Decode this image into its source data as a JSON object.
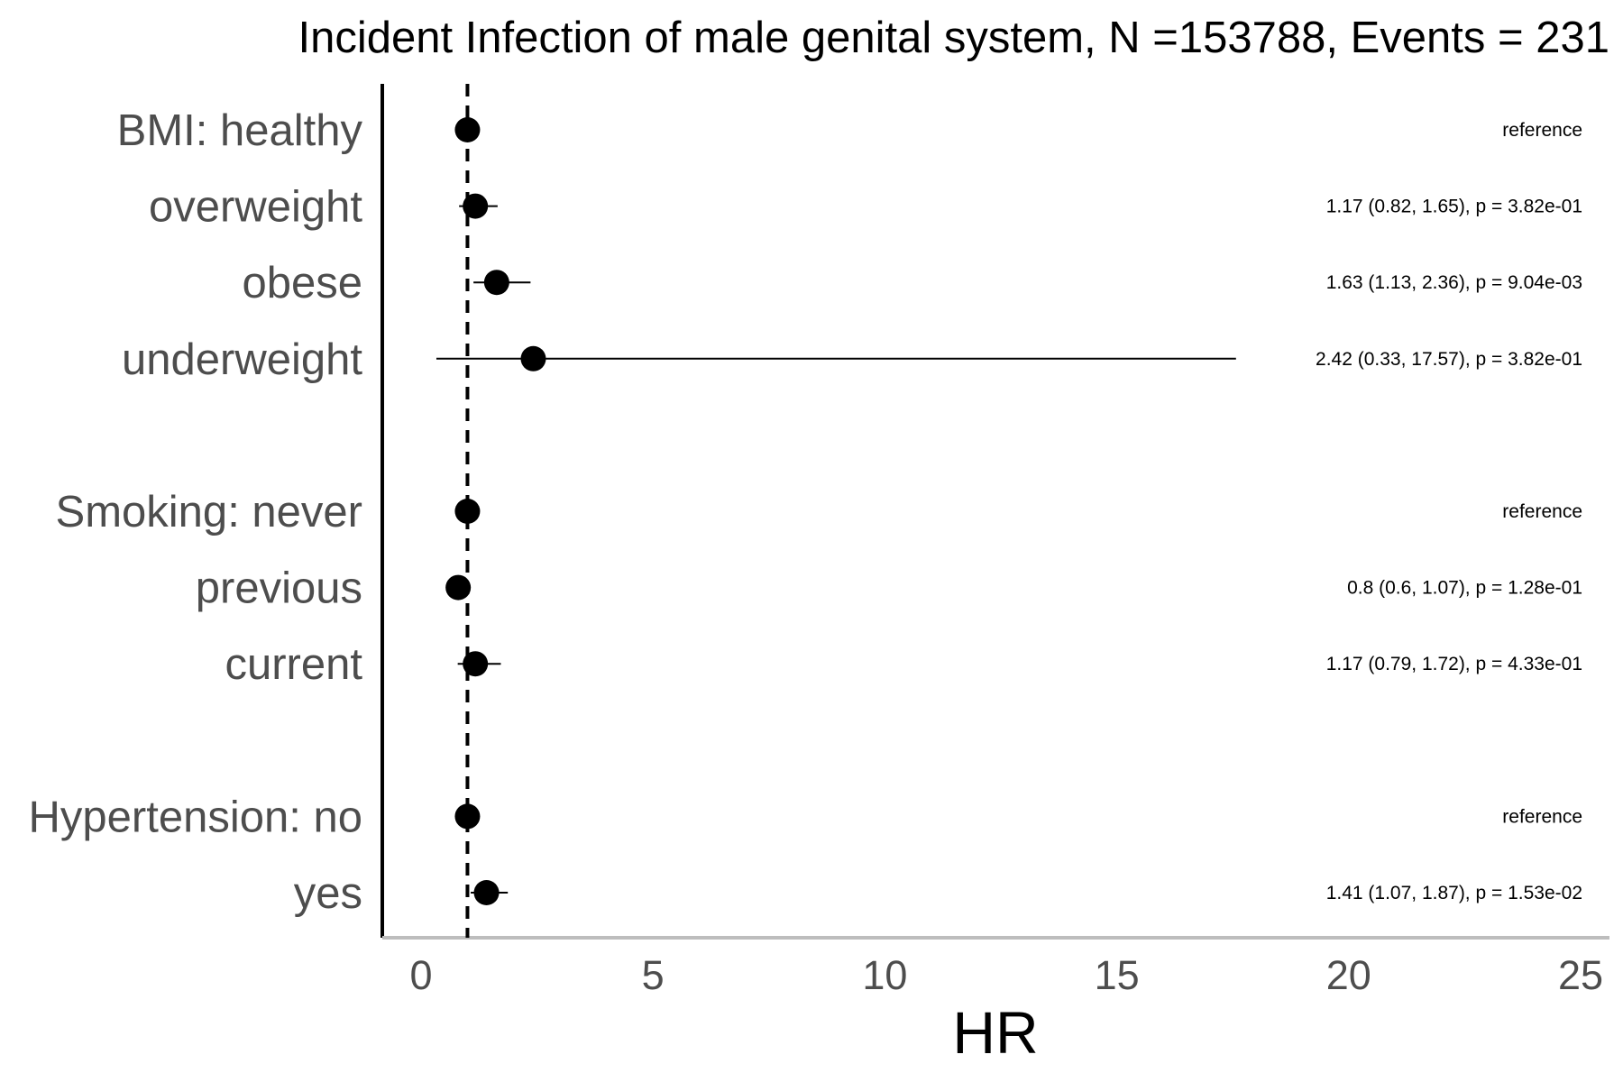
{
  "chart_data": {
    "type": "scatter",
    "subtype": "forest-plot",
    "title": "Incident Infection of male genital system, N =153788, Events = 231",
    "xlabel": "HR",
    "ylabel": "",
    "xlim": [
      -0.8,
      25.5
    ],
    "xticks": [
      0,
      5,
      10,
      15,
      20,
      25
    ],
    "reference_line": {
      "x": 1,
      "style": "dashed"
    },
    "grid": false,
    "rows": [
      {
        "label": "BMI: healthy",
        "hr": 1.0,
        "lower": null,
        "upper": null,
        "annotation": "reference",
        "group": 0
      },
      {
        "label": "overweight",
        "hr": 1.17,
        "lower": 0.82,
        "upper": 1.65,
        "annotation": "1.17 (0.82, 1.65), p = 3.82e-01",
        "group": 0
      },
      {
        "label": "obese",
        "hr": 1.63,
        "lower": 1.13,
        "upper": 2.36,
        "annotation": "1.63 (1.13, 2.36), p = 9.04e-03",
        "group": 0
      },
      {
        "label": "underweight",
        "hr": 2.42,
        "lower": 0.33,
        "upper": 17.57,
        "annotation": "2.42 (0.33, 17.57), p = 3.82e-01",
        "group": 0
      },
      {
        "label": "Smoking: never",
        "hr": 1.0,
        "lower": null,
        "upper": null,
        "annotation": "reference",
        "group": 1
      },
      {
        "label": "previous",
        "hr": 0.8,
        "lower": 0.6,
        "upper": 1.07,
        "annotation": "0.8 (0.6, 1.07), p = 1.28e-01",
        "group": 1
      },
      {
        "label": "current",
        "hr": 1.17,
        "lower": 0.79,
        "upper": 1.72,
        "annotation": "1.17 (0.79, 1.72), p = 4.33e-01",
        "group": 1
      },
      {
        "label": "Hypertension: no",
        "hr": 1.0,
        "lower": null,
        "upper": null,
        "annotation": "reference",
        "group": 2
      },
      {
        "label": "yes",
        "hr": 1.41,
        "lower": 1.07,
        "upper": 1.87,
        "annotation": "1.41 (1.07, 1.87), p = 1.53e-02",
        "group": 2
      }
    ]
  }
}
